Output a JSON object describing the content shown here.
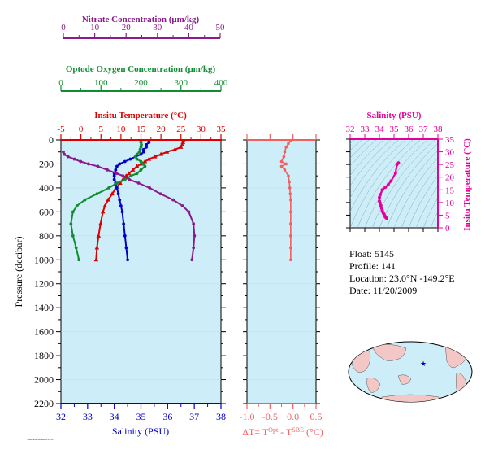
{
  "meta": {
    "footer_stamp": "Thu Nov 20 2009 05:05"
  },
  "colors": {
    "nitrate": "#8b1a8b",
    "oxygen": "#118c33",
    "temperature": "#dd0000",
    "salinity": "#0000cc",
    "delta_t": "#f06060",
    "ts": "#e6009a",
    "panel_bg": "#cdeef8",
    "map_land": "#f4c7c7"
  },
  "info": {
    "float_line": "Float:  5145",
    "profile_line": "Profile:  141",
    "location_line": "Location:  23.0°N  -149.2°E",
    "date_line": "Date:  11/20/2009"
  },
  "chart_data": [
    {
      "id": "profile",
      "type": "line",
      "ylabel": "Pressure (decibar)",
      "ylim": [
        2200,
        0
      ],
      "yticks": [
        0,
        200,
        400,
        600,
        800,
        1000,
        1200,
        1400,
        1600,
        1800,
        2000,
        2200
      ],
      "axes": {
        "nitrate": {
          "label": "Nitrate Concentration (μm/kg)",
          "lim": [
            0,
            50
          ],
          "ticks": [
            0,
            10,
            20,
            30,
            40,
            50
          ]
        },
        "oxygen": {
          "label": "Optode Oxygen Concentration (μm/kg)",
          "lim": [
            0,
            400
          ],
          "ticks": [
            0,
            100,
            200,
            300,
            400
          ]
        },
        "temperature": {
          "label": "Insitu Temperature (°C)",
          "lim": [
            -5,
            35
          ],
          "ticks": [
            -5,
            0,
            5,
            10,
            15,
            20,
            25,
            30,
            35
          ]
        },
        "salinity": {
          "label": "Salinity (PSU)",
          "lim": [
            32,
            38
          ],
          "ticks": [
            32,
            33,
            34,
            35,
            36,
            37,
            38
          ]
        }
      },
      "series": [
        {
          "axis": "temperature",
          "marker": "triangle",
          "p": [
            5,
            20,
            40,
            60,
            80,
            100,
            120,
            140,
            160,
            180,
            200,
            220,
            250,
            280,
            300,
            330,
            360,
            400,
            450,
            500,
            550,
            600,
            700,
            800,
            900,
            1000
          ],
          "values": [
            25.6,
            25.5,
            25.3,
            25.0,
            23.5,
            21.5,
            20.0,
            18.5,
            17.0,
            16.0,
            15.0,
            14.0,
            13.0,
            12.0,
            11.3,
            10.5,
            9.8,
            8.8,
            7.8,
            6.8,
            6.0,
            5.5,
            4.9,
            4.4,
            4.0,
            3.8
          ]
        },
        {
          "axis": "salinity",
          "marker": "dot",
          "p": [
            5,
            20,
            40,
            60,
            80,
            100,
            120,
            140,
            160,
            180,
            200,
            220,
            250,
            280,
            300,
            330,
            360,
            400,
            450,
            500,
            550,
            600,
            700,
            800,
            900,
            1000
          ],
          "values": [
            35.3,
            35.3,
            35.2,
            35.2,
            35.1,
            35.1,
            35.0,
            34.8,
            34.6,
            34.4,
            34.2,
            34.1,
            34.05,
            34.0,
            34.0,
            34.0,
            34.05,
            34.1,
            34.15,
            34.2,
            34.25,
            34.3,
            34.35,
            34.4,
            34.45,
            34.5
          ]
        },
        {
          "axis": "oxygen",
          "marker": "dot",
          "p": [
            5,
            20,
            40,
            60,
            80,
            100,
            120,
            140,
            160,
            180,
            200,
            220,
            250,
            280,
            300,
            330,
            360,
            400,
            450,
            500,
            550,
            600,
            700,
            800,
            900,
            1000
          ],
          "values": [
            200,
            200,
            201,
            200,
            198,
            196,
            190,
            186,
            190,
            200,
            206,
            210,
            200,
            190,
            175,
            160,
            140,
            120,
            90,
            60,
            40,
            30,
            25,
            30,
            38,
            45
          ]
        },
        {
          "axis": "nitrate",
          "marker": "dot",
          "p": [
            100,
            120,
            140,
            160,
            180,
            200,
            220,
            250,
            280,
            300,
            330,
            360,
            400,
            450,
            500,
            550,
            600,
            700,
            800,
            900,
            1000
          ],
          "values": [
            0,
            0.3,
            1.5,
            3.5,
            5.5,
            8,
            11,
            14,
            17,
            19,
            21,
            24,
            27.5,
            31,
            35,
            38,
            40,
            41.5,
            41.8,
            41.5,
            41
          ]
        }
      ]
    },
    {
      "id": "delta_t",
      "type": "line",
      "xlabel": "ΔT= TOpt - TSBE (°C)",
      "xlim": [
        -1.0,
        0.5
      ],
      "xticks": [
        -1.0,
        -0.5,
        0.0,
        0.5
      ],
      "p": [
        5,
        30,
        60,
        100,
        140,
        180,
        200,
        220,
        250,
        300,
        350,
        400,
        450,
        500,
        600,
        700,
        800,
        900,
        1000
      ],
      "values": [
        -0.05,
        -0.1,
        -0.15,
        -0.18,
        -0.2,
        -0.25,
        -0.15,
        -0.25,
        -0.18,
        -0.1,
        -0.08,
        -0.07,
        -0.06,
        -0.05,
        -0.05,
        -0.05,
        -0.05,
        -0.05,
        -0.05
      ]
    },
    {
      "id": "ts",
      "type": "scatter",
      "xlabel": "Salinity (PSU)",
      "ylabel": "Insitu Temperature (°C)",
      "xlim": [
        32,
        38
      ],
      "ylim": [
        0,
        35
      ],
      "xticks": [
        32,
        33,
        34,
        35,
        36,
        37,
        38
      ],
      "yticks": [
        0,
        5,
        10,
        15,
        20,
        25,
        30,
        35
      ],
      "salinity": [
        35.3,
        35.2,
        35.1,
        34.8,
        34.6,
        34.4,
        34.2,
        34.05,
        34.0,
        34.0,
        34.05,
        34.1,
        34.15,
        34.2,
        34.25,
        34.3,
        34.35,
        34.4,
        34.45,
        34.5
      ],
      "temperature": [
        25.6,
        25.0,
        21.5,
        18.5,
        17.0,
        16.0,
        15.0,
        13.0,
        12.0,
        10.5,
        9.8,
        8.8,
        7.8,
        6.8,
        6.0,
        5.5,
        4.9,
        4.4,
        4.0,
        3.8
      ]
    }
  ]
}
